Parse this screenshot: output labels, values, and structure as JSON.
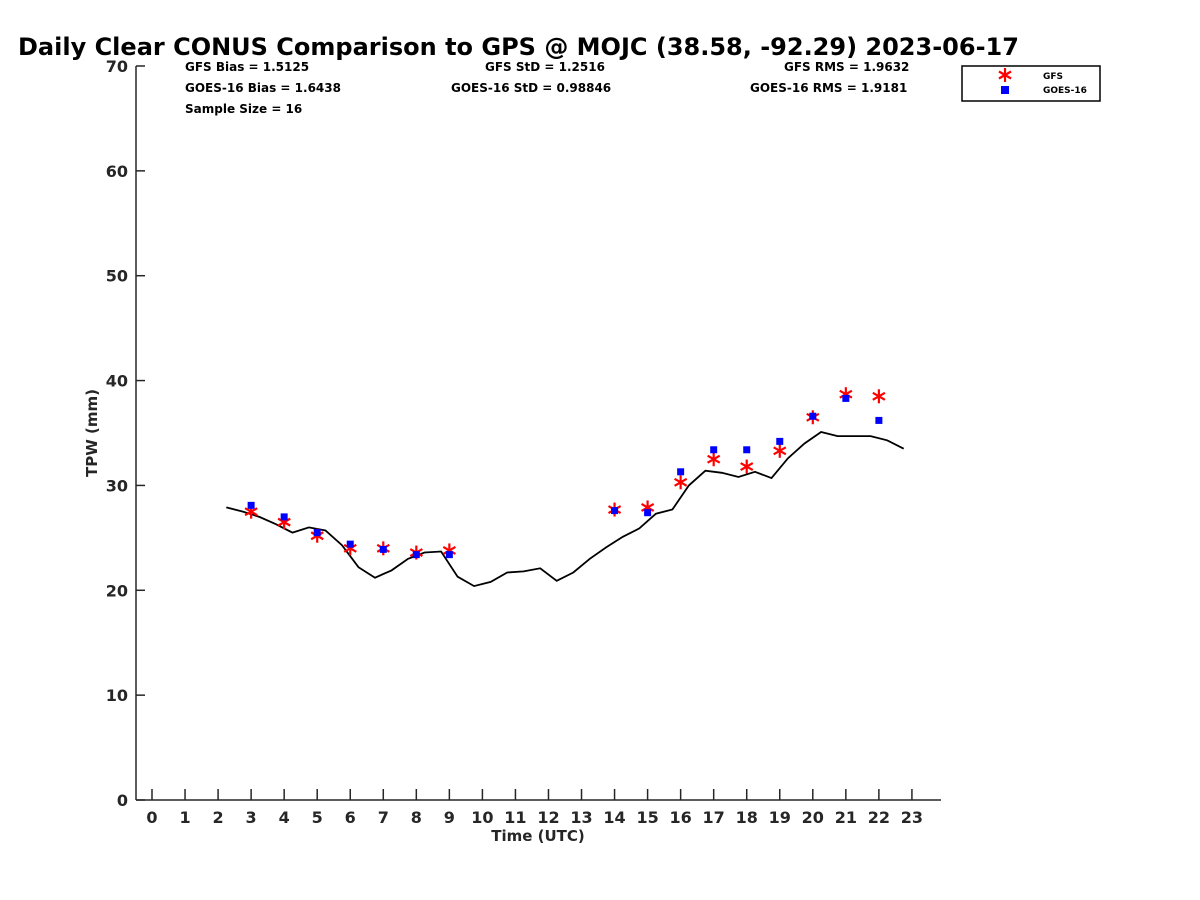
{
  "chart_data": {
    "type": "scatter",
    "title": "Daily Clear CONUS Comparison to GPS @ MOJC (38.58, -92.29) 2023-06-17",
    "xlabel": "Time (UTC)",
    "ylabel": "TPW (mm)",
    "xlim": [
      -0.5,
      23.7
    ],
    "ylim": [
      0,
      70
    ],
    "x_ticks": [
      0,
      1,
      2,
      3,
      4,
      5,
      6,
      7,
      8,
      9,
      10,
      11,
      12,
      13,
      14,
      15,
      16,
      17,
      18,
      19,
      20,
      21,
      22,
      23
    ],
    "y_ticks": [
      0,
      10,
      20,
      30,
      40,
      50,
      60,
      70
    ],
    "grid": false,
    "legend_position": "top-right",
    "stats": {
      "gfs_bias": "GFS Bias = 1.5125",
      "goes_bias": "GOES-16 Bias = 1.6438",
      "sample_size": "Sample Size = 16",
      "gfs_std": "GFS StD = 1.2516",
      "goes_std": "GOES-16 StD = 0.98846",
      "gfs_rms": "GFS RMS = 1.9632",
      "goes_rms": "GOES-16 RMS = 1.9181"
    },
    "series": [
      {
        "name": "GFS",
        "marker": "asterisk",
        "color": "#ff0000",
        "x": [
          3,
          4,
          5,
          6,
          7,
          8,
          9,
          14,
          15,
          16,
          17,
          18,
          19,
          20,
          21,
          22
        ],
        "y": [
          27.5,
          26.5,
          25.2,
          24.0,
          24.0,
          23.6,
          23.8,
          27.7,
          27.9,
          30.3,
          32.5,
          31.8,
          33.3,
          36.5,
          38.7,
          38.5
        ]
      },
      {
        "name": "GOES-16",
        "marker": "square",
        "color": "#0000ff",
        "x": [
          3,
          4,
          5,
          6,
          7,
          8,
          9,
          14,
          15,
          16,
          17,
          18,
          19,
          20,
          21,
          22
        ],
        "y": [
          28.1,
          27.0,
          25.5,
          24.4,
          23.9,
          23.4,
          23.4,
          27.6,
          27.4,
          31.3,
          33.4,
          33.4,
          34.2,
          36.6,
          38.3,
          36.2
        ]
      },
      {
        "marker": "line",
        "color": "#000000",
        "x": [
          2.25,
          2.75,
          3.25,
          3.75,
          4.25,
          4.75,
          5.25,
          5.75,
          6.25,
          6.75,
          7.25,
          7.75,
          8.25,
          8.75,
          9.25,
          9.75,
          10.25,
          10.75,
          11.25,
          11.75,
          12.25,
          12.75,
          13.25,
          13.75,
          14.25,
          14.75,
          15.25,
          15.75,
          16.25,
          16.75,
          17.25,
          17.75,
          18.25,
          18.75,
          19.25,
          19.75,
          20.25,
          20.75,
          21.25,
          21.75,
          22.25,
          22.75
        ],
        "y": [
          27.9,
          27.5,
          27.0,
          26.3,
          25.5,
          26.0,
          25.7,
          24.3,
          22.2,
          21.2,
          21.9,
          23.0,
          23.6,
          23.7,
          21.3,
          20.4,
          20.8,
          21.7,
          21.8,
          22.1,
          20.9,
          21.7,
          23.0,
          24.1,
          25.1,
          25.9,
          27.3,
          27.7,
          30.0,
          31.4,
          31.2,
          30.8,
          31.3,
          30.7,
          32.6,
          34.0,
          35.1,
          34.7,
          34.7,
          34.7,
          34.3,
          33.5
        ]
      }
    ]
  }
}
